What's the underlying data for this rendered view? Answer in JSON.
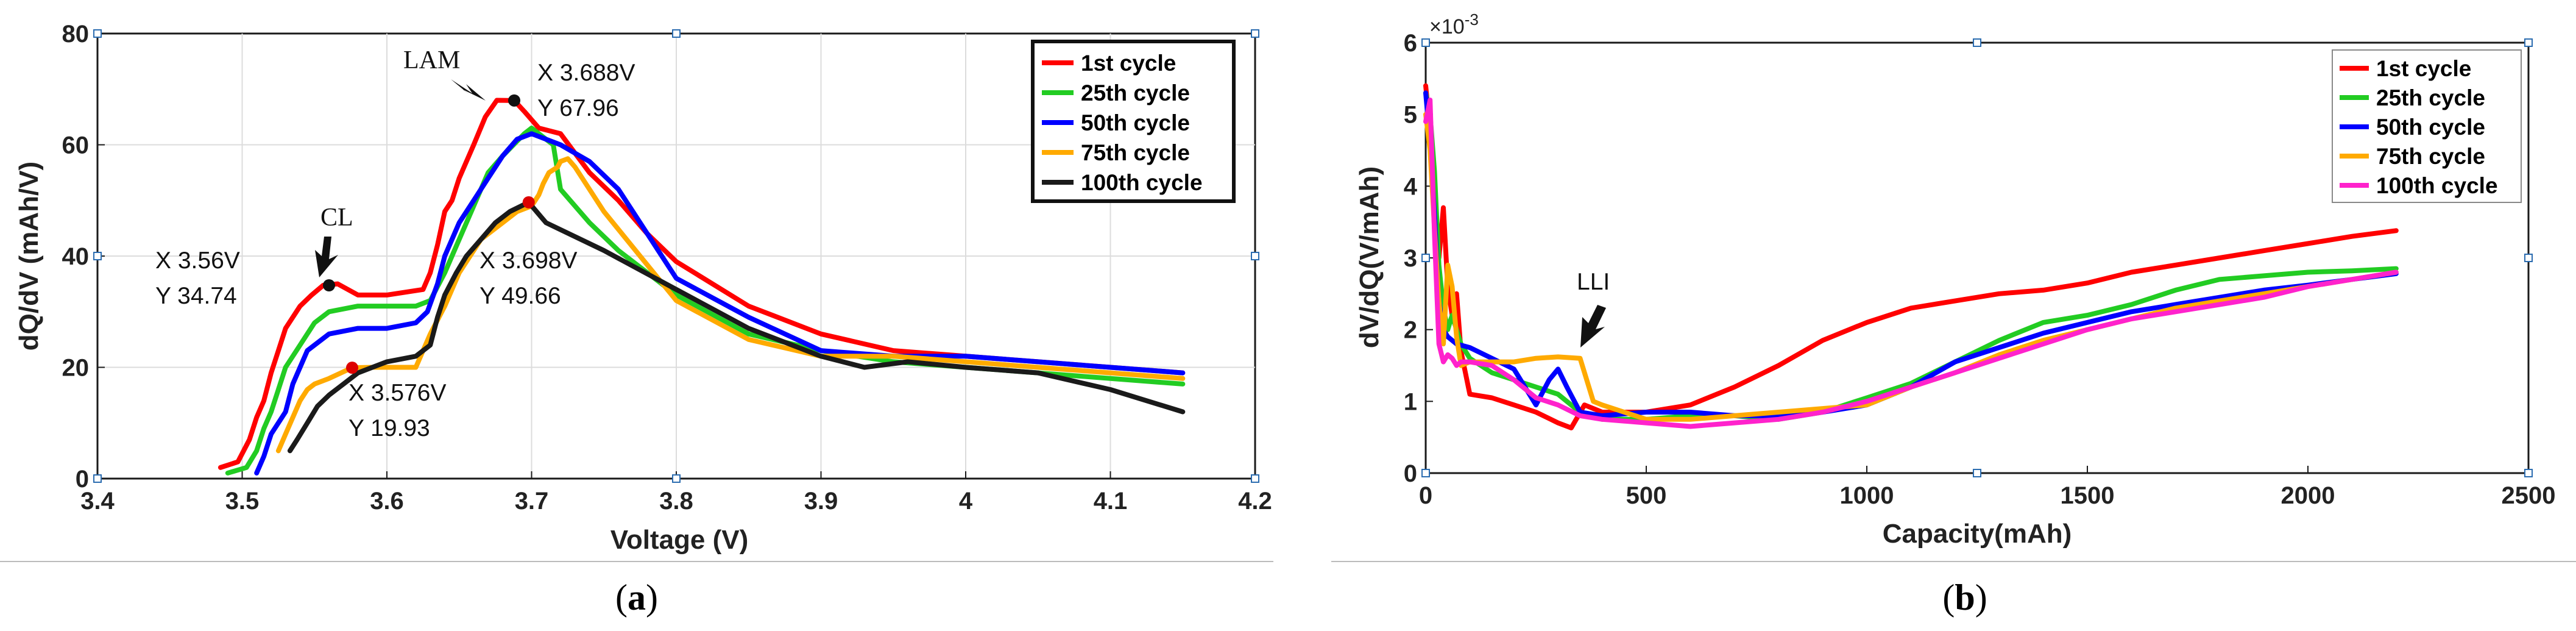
{
  "chart_data": [
    {
      "type": "line",
      "panel_label": "(a)",
      "panel_letter": "a",
      "title": "",
      "xlabel": "Voltage (V)",
      "ylabel": "dQ/dV (mAh/V)",
      "xlim": [
        3.4,
        4.2
      ],
      "ylim": [
        0,
        80
      ],
      "xticks": [
        "3.4",
        "3.5",
        "3.6",
        "3.7",
        "3.8",
        "3.9",
        "4",
        "4.1",
        "4.2"
      ],
      "yticks": [
        "0",
        "20",
        "40",
        "60",
        "80"
      ],
      "grid": true,
      "legend_position": "top-right",
      "series": [
        {
          "name": "1st cycle",
          "color": "#ff0000",
          "x": [
            3.485,
            3.497,
            3.505,
            3.51,
            3.515,
            3.52,
            3.525,
            3.53,
            3.54,
            3.548,
            3.556,
            3.566,
            3.58,
            3.6,
            3.625,
            3.63,
            3.635,
            3.64,
            3.645,
            3.65,
            3.66,
            3.668,
            3.676,
            3.688,
            3.695,
            3.705,
            3.72,
            3.74,
            3.76,
            3.78,
            3.8,
            3.85,
            3.9,
            3.95,
            4.0,
            4.05,
            4.1,
            4.15
          ],
          "y": [
            2,
            3,
            7,
            11,
            14,
            19,
            23,
            27,
            31,
            33,
            34.74,
            35,
            33,
            33,
            34,
            37,
            42,
            48,
            50,
            54,
            60,
            65,
            68,
            67.96,
            66,
            63,
            62,
            55,
            50,
            44,
            39,
            31,
            26,
            23,
            22,
            21,
            20,
            19
          ]
        },
        {
          "name": "25th cycle",
          "color": "#22cc22",
          "x": [
            3.49,
            3.503,
            3.51,
            3.515,
            3.52,
            3.525,
            3.53,
            3.54,
            3.55,
            3.56,
            3.58,
            3.6,
            3.62,
            3.63,
            3.64,
            3.65,
            3.66,
            3.67,
            3.68,
            3.695,
            3.7,
            3.71,
            3.715,
            3.72,
            3.74,
            3.76,
            3.8,
            3.85,
            3.9,
            3.95,
            4.0,
            4.05,
            4.1,
            4.15
          ],
          "y": [
            1,
            2,
            5,
            9,
            12,
            16,
            20,
            24,
            28,
            30,
            31,
            31,
            31,
            32,
            37,
            43,
            49,
            55,
            58,
            62,
            63,
            61,
            60,
            52,
            46,
            41,
            33,
            26,
            23,
            21,
            20,
            19,
            18,
            17
          ]
        },
        {
          "name": "50th cycle",
          "color": "#0000ff",
          "x": [
            3.51,
            3.515,
            3.52,
            3.53,
            3.535,
            3.545,
            3.56,
            3.58,
            3.6,
            3.62,
            3.628,
            3.635,
            3.64,
            3.65,
            3.66,
            3.67,
            3.68,
            3.69,
            3.7,
            3.72,
            3.74,
            3.76,
            3.78,
            3.8,
            3.85,
            3.9,
            3.95,
            4.0,
            4.05,
            4.1,
            4.15
          ],
          "y": [
            1,
            4,
            8,
            12,
            17,
            23,
            26,
            27,
            27,
            28,
            30,
            35,
            40,
            46,
            50,
            54,
            58,
            61,
            62,
            60,
            57,
            52,
            44,
            36,
            29,
            23,
            22,
            22,
            21,
            20,
            19
          ]
        },
        {
          "name": "75th cycle",
          "color": "#ffaa00",
          "x": [
            3.525,
            3.53,
            3.535,
            3.54,
            3.545,
            3.55,
            3.56,
            3.576,
            3.59,
            3.61,
            3.62,
            3.63,
            3.64,
            3.65,
            3.665,
            3.68,
            3.69,
            3.7,
            3.705,
            3.708,
            3.712,
            3.718,
            3.72,
            3.725,
            3.73,
            3.75,
            3.8,
            3.85,
            3.9,
            3.95,
            4.0,
            4.05,
            4.1,
            4.15
          ],
          "y": [
            5,
            8,
            11,
            14,
            16,
            17,
            18,
            19.93,
            20,
            20,
            20,
            26,
            31,
            37,
            43,
            46,
            48,
            49,
            51,
            53,
            55,
            56,
            57,
            57.5,
            56,
            48,
            32,
            25,
            22,
            22,
            21,
            20,
            19,
            18
          ]
        },
        {
          "name": "100th cycle",
          "color": "#1a1a1a",
          "x": [
            3.533,
            3.538,
            3.545,
            3.552,
            3.56,
            3.57,
            3.58,
            3.6,
            3.62,
            3.63,
            3.635,
            3.64,
            3.648,
            3.655,
            3.665,
            3.675,
            3.685,
            3.698,
            3.71,
            3.75,
            3.8,
            3.85,
            3.9,
            3.93,
            3.96,
            4.0,
            4.05,
            4.1,
            4.15
          ],
          "y": [
            5,
            7,
            10,
            13,
            15,
            17,
            19,
            21,
            22,
            24,
            29,
            33,
            37,
            40,
            43,
            46,
            48,
            49.66,
            46,
            41,
            34,
            27,
            22,
            20,
            21,
            20,
            19,
            16,
            12
          ]
        }
      ],
      "annotations": [
        {
          "label_line1": "X 3.688V",
          "label_line2": "Y 67.96",
          "x": 3.688,
          "y": 67.96,
          "marker_color": "#111111"
        },
        {
          "label_line1": "X 3.56V",
          "label_line2": "Y 34.74",
          "x": 3.56,
          "y": 34.74,
          "marker_color": "#111111"
        },
        {
          "label_line1": "X 3.698V",
          "label_line2": "Y 49.66",
          "x": 3.698,
          "y": 49.66,
          "marker_color": "#dd0000"
        },
        {
          "label_line1": "X 3.576V",
          "label_line2": "Y 19.93",
          "x": 3.576,
          "y": 19.93,
          "marker_color": "#dd0000"
        }
      ],
      "callouts": [
        {
          "text": "LAM",
          "x": 3.683,
          "y": 68.5
        },
        {
          "text": "CL",
          "x": 3.556,
          "y": 36
        }
      ]
    },
    {
      "type": "line",
      "panel_label": "(b)",
      "panel_letter": "b",
      "title": "",
      "xlabel": "Capacity(mAh)",
      "ylabel": "dV/dQ(V/mAh)",
      "y_exponent_label": "×10",
      "y_exponent_power": "-3",
      "xlim": [
        0,
        2500
      ],
      "ylim": [
        0,
        6
      ],
      "xticks": [
        "0",
        "500",
        "1000",
        "1500",
        "2000",
        "2500"
      ],
      "yticks": [
        "0",
        "1",
        "2",
        "3",
        "4",
        "5",
        "6"
      ],
      "grid": false,
      "legend_position": "top-right",
      "series": [
        {
          "name": "1st cycle",
          "color": "#ff0000",
          "x": [
            0,
            10,
            20,
            30,
            40,
            50,
            60,
            70,
            80,
            100,
            150,
            200,
            250,
            300,
            330,
            360,
            400,
            450,
            500,
            600,
            700,
            800,
            900,
            1000,
            1100,
            1200,
            1300,
            1400,
            1500,
            1600,
            1700,
            1800,
            1900,
            2000,
            2100,
            2200
          ],
          "y": [
            5.4,
            4.8,
            3.9,
            3.0,
            3.7,
            2.6,
            2.2,
            2.5,
            1.7,
            1.1,
            1.05,
            0.95,
            0.85,
            0.7,
            0.63,
            0.95,
            0.85,
            0.85,
            0.85,
            0.95,
            1.2,
            1.5,
            1.85,
            2.1,
            2.3,
            2.4,
            2.5,
            2.55,
            2.65,
            2.8,
            2.9,
            3.0,
            3.1,
            3.2,
            3.3,
            3.38
          ]
        },
        {
          "name": "25th cycle",
          "color": "#22cc22",
          "x": [
            0,
            10,
            20,
            30,
            40,
            50,
            60,
            80,
            100,
            150,
            200,
            250,
            300,
            350,
            400,
            500,
            600,
            700,
            800,
            900,
            1000,
            1100,
            1200,
            1300,
            1400,
            1500,
            1600,
            1700,
            1800,
            1900,
            2000,
            2100,
            2200
          ],
          "y": [
            5.3,
            5.0,
            4.2,
            2.9,
            2.3,
            2.0,
            2.2,
            1.8,
            1.6,
            1.4,
            1.3,
            1.2,
            1.1,
            0.85,
            0.75,
            0.75,
            0.8,
            0.8,
            0.75,
            0.85,
            1.05,
            1.25,
            1.55,
            1.85,
            2.1,
            2.2,
            2.35,
            2.55,
            2.7,
            2.75,
            2.8,
            2.82,
            2.85
          ]
        },
        {
          "name": "50th cycle",
          "color": "#0000ff",
          "x": [
            0,
            10,
            20,
            30,
            40,
            50,
            70,
            100,
            150,
            200,
            250,
            280,
            300,
            320,
            350,
            400,
            500,
            600,
            700,
            800,
            900,
            1000,
            1100,
            1200,
            1300,
            1400,
            1500,
            1600,
            1700,
            1800,
            1900,
            2000,
            2100,
            2200
          ],
          "y": [
            5.3,
            4.6,
            3.6,
            2.4,
            2.0,
            1.9,
            1.8,
            1.75,
            1.6,
            1.45,
            0.95,
            1.3,
            1.45,
            1.2,
            0.85,
            0.8,
            0.85,
            0.85,
            0.8,
            0.8,
            0.85,
            0.95,
            1.2,
            1.55,
            1.75,
            1.95,
            2.1,
            2.25,
            2.35,
            2.45,
            2.55,
            2.62,
            2.7,
            2.78
          ]
        },
        {
          "name": "75th cycle",
          "color": "#ffaa00",
          "x": [
            0,
            10,
            20,
            30,
            40,
            50,
            60,
            70,
            80,
            100,
            150,
            200,
            250,
            300,
            350,
            380,
            400,
            450,
            500,
            600,
            700,
            800,
            900,
            1000,
            1100,
            1200,
            1300,
            1400,
            1500,
            1600,
            1700,
            1800,
            1900,
            2000,
            2100,
            2200
          ],
          "y": [
            5.0,
            4.5,
            3.4,
            2.4,
            1.8,
            2.9,
            2.6,
            1.9,
            1.5,
            1.55,
            1.55,
            1.55,
            1.6,
            1.62,
            1.6,
            1.0,
            0.95,
            0.85,
            0.75,
            0.75,
            0.8,
            0.85,
            0.9,
            0.95,
            1.2,
            1.4,
            1.65,
            1.85,
            2.0,
            2.15,
            2.3,
            2.4,
            2.5,
            2.6,
            2.7,
            2.8
          ]
        },
        {
          "name": "100th cycle",
          "color": "#ff22cc",
          "x": [
            0,
            10,
            20,
            30,
            40,
            50,
            60,
            70,
            80,
            100,
            150,
            200,
            250,
            300,
            350,
            400,
            500,
            600,
            700,
            800,
            900,
            1000,
            1100,
            1200,
            1300,
            1400,
            1500,
            1600,
            1700,
            1800,
            1900,
            2000,
            2100,
            2200
          ],
          "y": [
            4.9,
            5.2,
            3.3,
            1.8,
            1.55,
            1.65,
            1.6,
            1.5,
            1.55,
            1.55,
            1.5,
            1.3,
            1.05,
            0.95,
            0.8,
            0.75,
            0.7,
            0.65,
            0.7,
            0.75,
            0.85,
            1.0,
            1.2,
            1.4,
            1.6,
            1.8,
            2.0,
            2.15,
            2.25,
            2.35,
            2.45,
            2.6,
            2.7,
            2.8
          ]
        }
      ],
      "callouts": [
        {
          "text": "LLI",
          "x": 350,
          "y": 1.65
        }
      ]
    }
  ]
}
